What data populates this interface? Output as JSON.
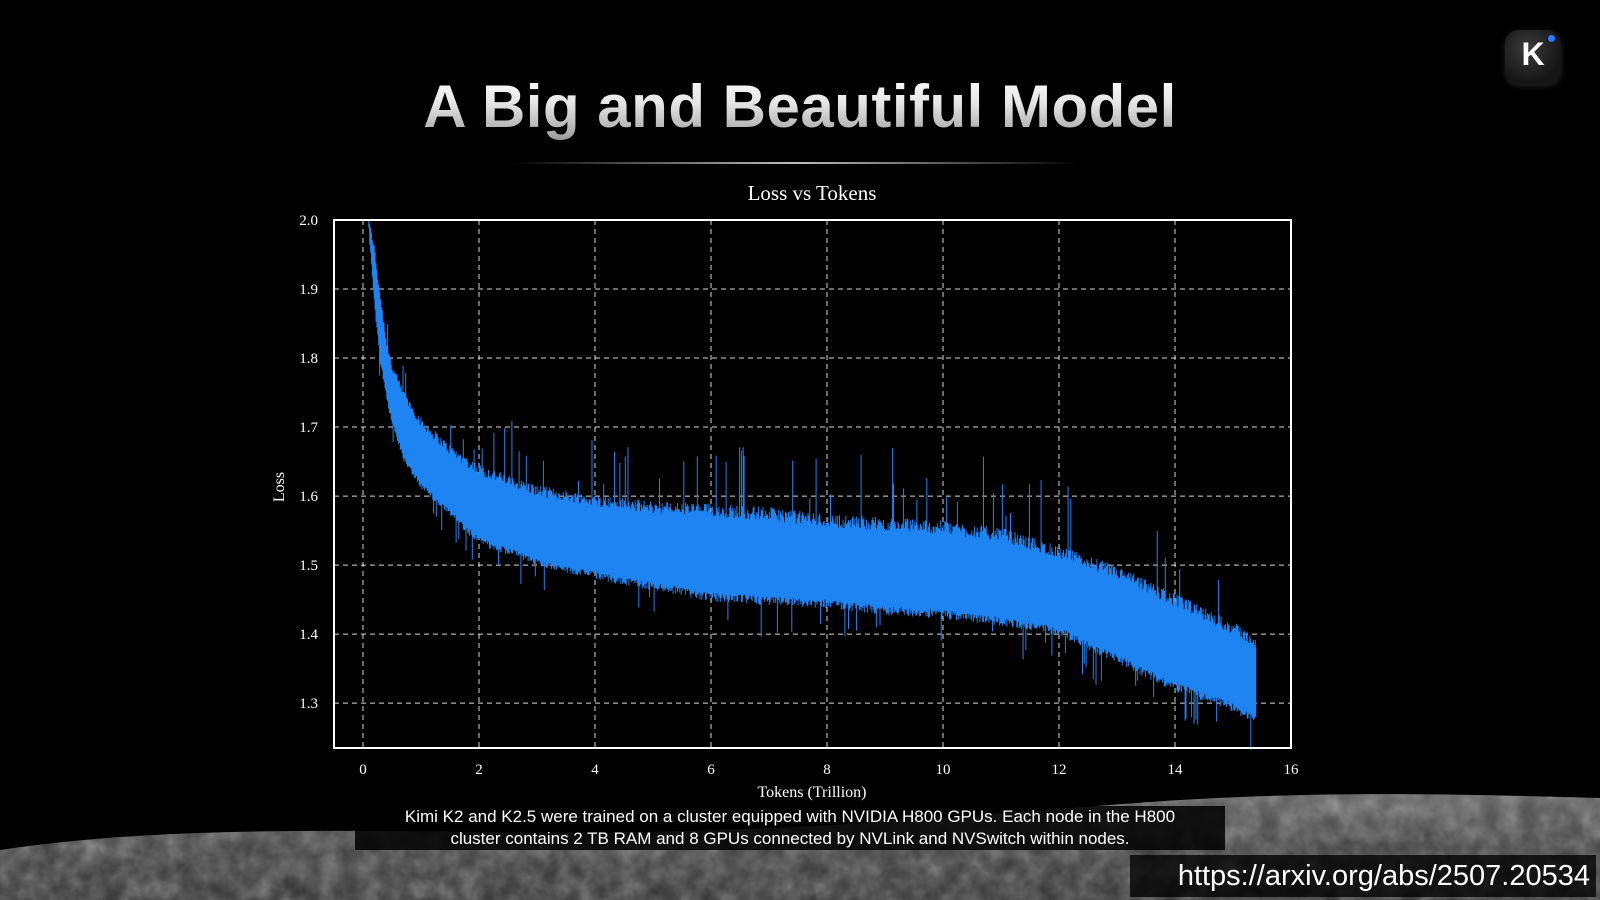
{
  "slide": {
    "title": "A Big and Beautiful Model",
    "logo_letter": "K",
    "caption_line1": "Kimi K2 and K2.5 were trained on a cluster equipped with NVIDIA H800 GPUs. Each node in the H800",
    "caption_line2": "cluster contains 2 TB RAM and 8 GPUs connected by NVLink and NVSwitch within nodes.",
    "source_url": "https://arxiv.org/abs/2507.20534"
  },
  "colors": {
    "background": "#000000",
    "series": "#1e84f2",
    "axes": "#ffffff",
    "grid": "#ffffff"
  },
  "chart_data": {
    "type": "line",
    "title": "Loss vs Tokens",
    "xlabel": "Tokens (Trillion)",
    "ylabel": "Loss",
    "xlim": [
      -0.5,
      16
    ],
    "ylim": [
      1.235,
      2.0
    ],
    "xticks": [
      0,
      2,
      4,
      6,
      8,
      10,
      12,
      14,
      16
    ],
    "yticks": [
      1.3,
      1.4,
      1.5,
      1.6,
      1.7,
      1.8,
      1.9,
      2.0
    ],
    "grid": true,
    "legend": "none",
    "series": [
      {
        "style": "noisy band",
        "x": [
          0.1,
          0.2,
          0.3,
          0.4,
          0.5,
          0.7,
          1.0,
          1.5,
          2.0,
          3.0,
          4.0,
          5.0,
          6.0,
          7.0,
          8.0,
          9.0,
          10.0,
          11.0,
          12.0,
          13.0,
          14.0,
          15.0,
          15.4
        ],
        "upper": [
          2.0,
          1.95,
          1.88,
          1.82,
          1.78,
          1.74,
          1.7,
          1.66,
          1.63,
          1.6,
          1.585,
          1.575,
          1.57,
          1.565,
          1.555,
          1.55,
          1.545,
          1.535,
          1.51,
          1.48,
          1.44,
          1.4,
          1.38
        ],
        "lower": [
          1.99,
          1.88,
          1.8,
          1.75,
          1.71,
          1.66,
          1.62,
          1.58,
          1.54,
          1.51,
          1.49,
          1.475,
          1.46,
          1.455,
          1.45,
          1.44,
          1.435,
          1.425,
          1.41,
          1.37,
          1.33,
          1.3,
          1.28
        ],
        "spike_max": [
          1.62,
          1.62,
          1.6,
          1.64,
          1.6,
          1.58
        ]
      }
    ]
  }
}
